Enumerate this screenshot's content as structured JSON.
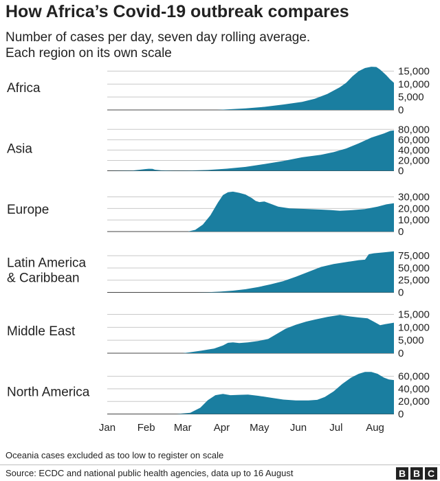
{
  "title": "How Africa’s Covid-19 outbreak compares",
  "subtitle_lines": [
    "Number of cases per day, seven day rolling average.",
    "Each region on its own scale"
  ],
  "footnote": "Oceania cases excluded as too low to register on scale",
  "source": "Source: ECDC and national public health agencies, data up to 16 August",
  "logo_letters": [
    "B",
    "B",
    "C"
  ],
  "colors": {
    "area": "#1a7ea0",
    "gridline": "#c8c8c8",
    "text": "#222222",
    "axis": "#444444"
  },
  "chart_data": {
    "type": "area",
    "title": "How Africa’s Covid-19 outbreak compares",
    "xlabel": "",
    "ylabel": "Number of cases per day, seven day rolling average",
    "x_unit": "days since 1 Jan 2020",
    "xlim": [
      0,
      228
    ],
    "x_ticks": [
      {
        "label": "Jan",
        "day": 0
      },
      {
        "label": "Feb",
        "day": 31
      },
      {
        "label": "Mar",
        "day": 60
      },
      {
        "label": "Apr",
        "day": 91
      },
      {
        "label": "May",
        "day": 121
      },
      {
        "label": "Jun",
        "day": 152
      },
      {
        "label": "Jul",
        "day": 182
      },
      {
        "label": "Aug",
        "day": 213
      }
    ],
    "panels": [
      {
        "name": "Africa",
        "label_lines": [
          "Africa"
        ],
        "ylim": [
          0,
          17000
        ],
        "y_ticks": [
          0,
          5000,
          10000,
          15000
        ],
        "y_tick_labels": [
          "0",
          "5,000",
          "10,000",
          "15,000"
        ],
        "points": [
          [
            0,
            0
          ],
          [
            86,
            0
          ],
          [
            87,
            10
          ],
          [
            95,
            200
          ],
          [
            110,
            600
          ],
          [
            125,
            1200
          ],
          [
            140,
            2100
          ],
          [
            155,
            3100
          ],
          [
            165,
            4300
          ],
          [
            175,
            6200
          ],
          [
            185,
            8800
          ],
          [
            190,
            10500
          ],
          [
            195,
            13000
          ],
          [
            200,
            15000
          ],
          [
            205,
            16200
          ],
          [
            210,
            16700
          ],
          [
            214,
            16600
          ],
          [
            217,
            15600
          ],
          [
            220,
            14300
          ],
          [
            222,
            13400
          ],
          [
            225,
            11800
          ],
          [
            228,
            10500
          ]
        ]
      },
      {
        "name": "Asia",
        "label_lines": [
          "Asia"
        ],
        "ylim": [
          0,
          85000
        ],
        "y_ticks": [
          0,
          20000,
          40000,
          60000,
          80000
        ],
        "y_tick_labels": [
          "0",
          "20,000",
          "40,000",
          "60,000",
          "80,000"
        ],
        "points": [
          [
            0,
            0
          ],
          [
            20,
            500
          ],
          [
            26,
            2000
          ],
          [
            30,
            3200
          ],
          [
            33,
            3800
          ],
          [
            36,
            3600
          ],
          [
            38,
            2000
          ],
          [
            43,
            800
          ],
          [
            55,
            300
          ],
          [
            65,
            500
          ],
          [
            80,
            1500
          ],
          [
            95,
            4000
          ],
          [
            110,
            7500
          ],
          [
            125,
            13000
          ],
          [
            140,
            19000
          ],
          [
            155,
            26000
          ],
          [
            170,
            31000
          ],
          [
            180,
            36000
          ],
          [
            190,
            43000
          ],
          [
            200,
            53000
          ],
          [
            210,
            64000
          ],
          [
            220,
            72000
          ],
          [
            225,
            77000
          ],
          [
            228,
            78000
          ]
        ]
      },
      {
        "name": "Europe",
        "label_lines": [
          "Europe"
        ],
        "ylim": [
          0,
          38000
        ],
        "y_ticks": [
          0,
          10000,
          20000,
          30000
        ],
        "y_tick_labels": [
          "0",
          "10,000",
          "20,000",
          "30,000"
        ],
        "points": [
          [
            0,
            0
          ],
          [
            64,
            0
          ],
          [
            70,
            1500
          ],
          [
            76,
            6000
          ],
          [
            82,
            14000
          ],
          [
            88,
            25000
          ],
          [
            92,
            31500
          ],
          [
            96,
            34000
          ],
          [
            100,
            34500
          ],
          [
            105,
            33500
          ],
          [
            110,
            32000
          ],
          [
            115,
            29000
          ],
          [
            118,
            26500
          ],
          [
            121,
            25500
          ],
          [
            125,
            26000
          ],
          [
            130,
            24000
          ],
          [
            136,
            21500
          ],
          [
            145,
            20000
          ],
          [
            160,
            19500
          ],
          [
            170,
            19000
          ],
          [
            178,
            18500
          ],
          [
            185,
            18000
          ],
          [
            195,
            18500
          ],
          [
            205,
            19500
          ],
          [
            215,
            21500
          ],
          [
            222,
            23500
          ],
          [
            228,
            24500
          ]
        ]
      },
      {
        "name": "Latin America & Caribbean",
        "label_lines": [
          "Latin America",
          "& Caribbean"
        ],
        "ylim": [
          0,
          90000
        ],
        "y_ticks": [
          0,
          25000,
          50000,
          75000
        ],
        "y_tick_labels": [
          "0",
          "25,000",
          "50,000",
          "75,000"
        ],
        "points": [
          [
            0,
            0
          ],
          [
            70,
            0
          ],
          [
            80,
            400
          ],
          [
            90,
            1500
          ],
          [
            100,
            3500
          ],
          [
            110,
            6500
          ],
          [
            120,
            11000
          ],
          [
            130,
            16500
          ],
          [
            140,
            23000
          ],
          [
            150,
            32000
          ],
          [
            160,
            42000
          ],
          [
            170,
            52000
          ],
          [
            180,
            58000
          ],
          [
            190,
            62000
          ],
          [
            200,
            66000
          ],
          [
            205,
            67000
          ],
          [
            208,
            78000
          ],
          [
            212,
            80000
          ],
          [
            220,
            82000
          ],
          [
            228,
            84000
          ]
        ]
      },
      {
        "name": "Middle East",
        "label_lines": [
          "Middle East"
        ],
        "ylim": [
          0,
          17000
        ],
        "y_ticks": [
          0,
          5000,
          10000,
          15000
        ],
        "y_tick_labels": [
          "0",
          "5,000",
          "10,000",
          "15,000"
        ],
        "points": [
          [
            0,
            0
          ],
          [
            60,
            0
          ],
          [
            65,
            300
          ],
          [
            75,
            1000
          ],
          [
            85,
            1800
          ],
          [
            92,
            3000
          ],
          [
            96,
            4000
          ],
          [
            100,
            4200
          ],
          [
            105,
            3900
          ],
          [
            112,
            4200
          ],
          [
            120,
            4700
          ],
          [
            128,
            5500
          ],
          [
            135,
            7500
          ],
          [
            142,
            9500
          ],
          [
            150,
            11000
          ],
          [
            158,
            12200
          ],
          [
            165,
            13000
          ],
          [
            175,
            14000
          ],
          [
            185,
            14800
          ],
          [
            193,
            14200
          ],
          [
            200,
            13800
          ],
          [
            207,
            13500
          ],
          [
            212,
            12200
          ],
          [
            217,
            10800
          ],
          [
            221,
            11200
          ],
          [
            228,
            11800
          ]
        ]
      },
      {
        "name": "North America",
        "label_lines": [
          "North America"
        ],
        "ylim": [
          0,
          70000
        ],
        "y_ticks": [
          0,
          20000,
          40000,
          60000
        ],
        "y_tick_labels": [
          "0",
          "20,000",
          "40,000",
          "60,000"
        ],
        "points": [
          [
            0,
            0
          ],
          [
            55,
            0
          ],
          [
            66,
            2000
          ],
          [
            74,
            10000
          ],
          [
            80,
            22000
          ],
          [
            86,
            30000
          ],
          [
            92,
            32000
          ],
          [
            98,
            30000
          ],
          [
            105,
            30500
          ],
          [
            112,
            31000
          ],
          [
            120,
            29000
          ],
          [
            130,
            26000
          ],
          [
            140,
            23000
          ],
          [
            150,
            21500
          ],
          [
            160,
            21500
          ],
          [
            167,
            22500
          ],
          [
            173,
            27000
          ],
          [
            180,
            36000
          ],
          [
            187,
            48000
          ],
          [
            194,
            58000
          ],
          [
            200,
            64000
          ],
          [
            205,
            67000
          ],
          [
            210,
            67000
          ],
          [
            215,
            64000
          ],
          [
            220,
            58000
          ],
          [
            224,
            55000
          ],
          [
            228,
            54000
          ]
        ]
      }
    ]
  }
}
